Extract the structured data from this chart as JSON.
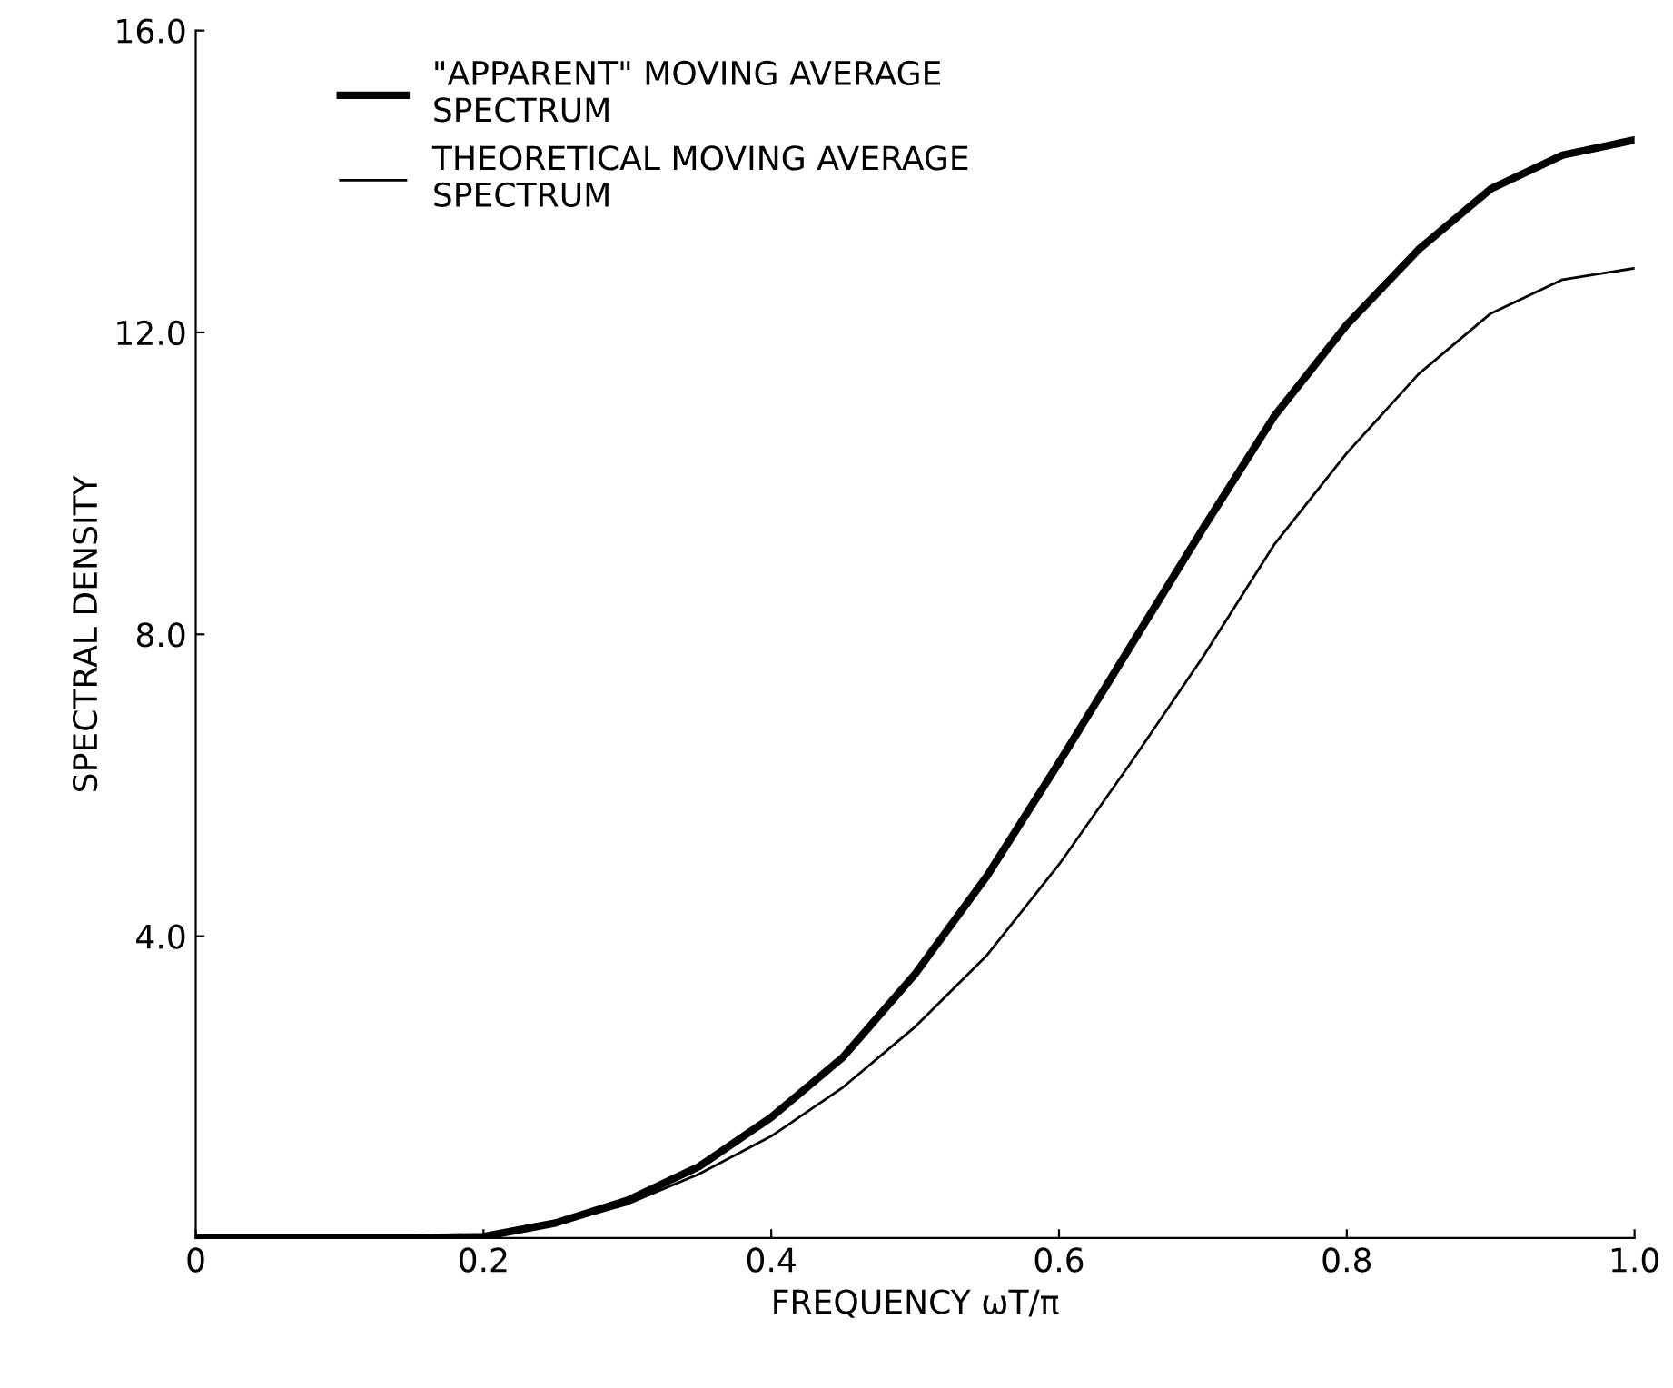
{
  "chart_data": {
    "type": "line",
    "xlabel": "FREQUENCY ωT/π",
    "ylabel": "SPECTRAL DENSITY",
    "xlim": [
      0,
      1.0
    ],
    "ylim": [
      0,
      16.0
    ],
    "xticks": [
      0,
      {
        "value": 0.2,
        "label": "0.2"
      },
      {
        "value": 0.4,
        "label": "0.4"
      },
      {
        "value": 0.6,
        "label": "0.6"
      },
      {
        "value": 0.8,
        "label": "0.8"
      },
      {
        "value": 1.0,
        "label": "1.0"
      }
    ],
    "yticks": [
      {
        "value": 0,
        "label": null
      },
      {
        "value": 4.0,
        "label": "4.0"
      },
      {
        "value": 8.0,
        "label": "8.0"
      },
      {
        "value": 12.0,
        "label": "12.0"
      },
      {
        "value": 16.0,
        "label": "16.0"
      }
    ],
    "x": [
      0,
      0.15,
      0.2,
      0.25,
      0.3,
      0.35,
      0.4,
      0.45,
      0.5,
      0.55,
      0.6,
      0.65,
      0.7,
      0.75,
      0.8,
      0.85,
      0.9,
      0.95,
      1.0
    ],
    "series": [
      {
        "name": "\"APPARENT\" MOVING AVERAGE\nSPECTRUM",
        "color": "#000000",
        "values": [
          0,
          0,
          0.02,
          0.2,
          0.5,
          0.95,
          1.6,
          2.4,
          3.5,
          4.8,
          6.3,
          7.85,
          9.4,
          10.9,
          12.1,
          13.1,
          13.9,
          14.35,
          14.55
        ]
      },
      {
        "name": "THEORETICAL MOVING AVERAGE\nSPECTRUM",
        "color": "#000000",
        "values": [
          0,
          0,
          0.02,
          0.18,
          0.45,
          0.85,
          1.35,
          2.0,
          2.8,
          3.75,
          4.95,
          6.3,
          7.7,
          9.2,
          10.4,
          11.45,
          12.25,
          12.7,
          12.85
        ]
      }
    ],
    "legend": "top left",
    "grid": false,
    "marker": "none",
    "line_style": "solid"
  }
}
